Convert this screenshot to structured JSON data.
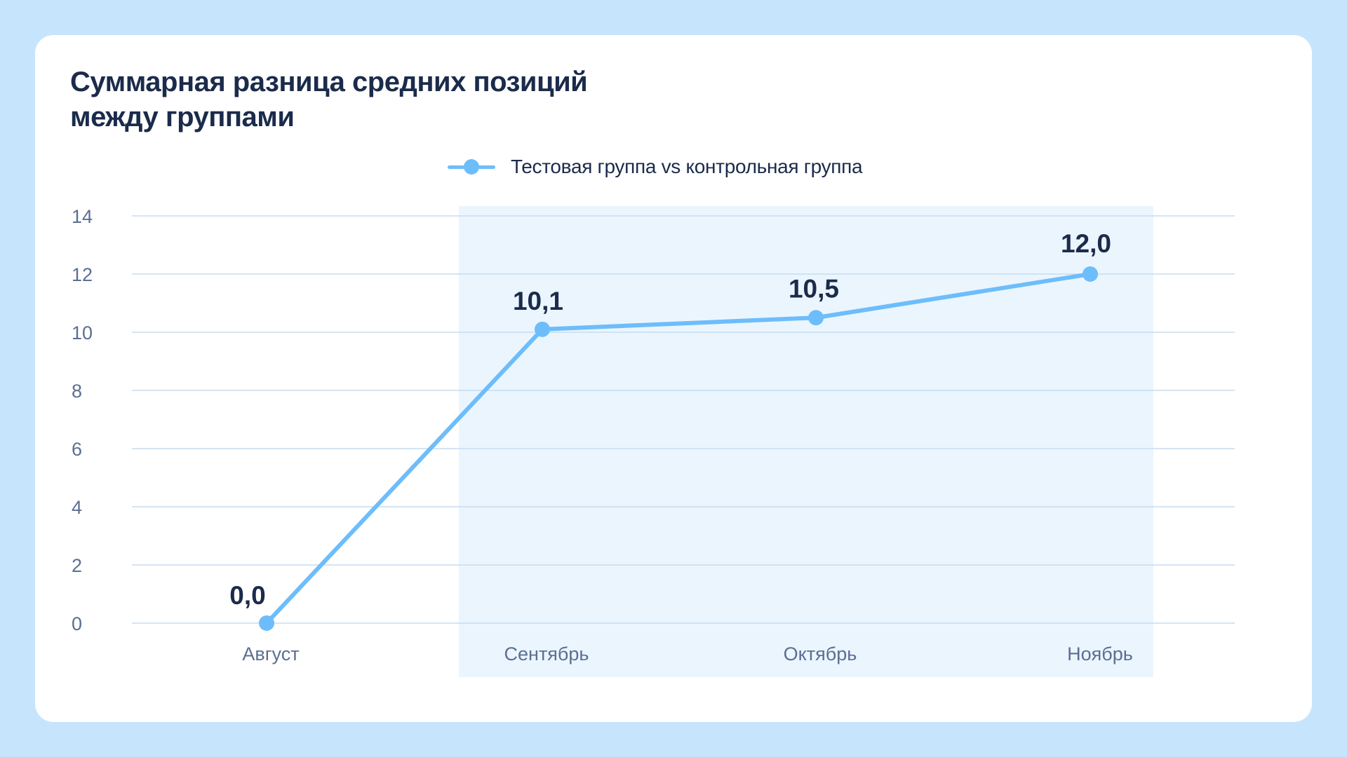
{
  "title": "Суммарная разница средних позиций между группами",
  "colors": {
    "background": "#c6e5fd",
    "card": "#ffffff",
    "line": "#6dbdfb",
    "highlight": "#ebf5fe",
    "grid": "#c8dcef",
    "text": "#1b2b4b",
    "axis_text": "#5b6f93"
  },
  "chart_data": {
    "type": "line",
    "title": "Суммарная разница средних позиций между группами",
    "categories": [
      "Август",
      "Сентябрь",
      "Октябрь",
      "Ноябрь"
    ],
    "series": [
      {
        "name": "Тестовая группа vs контрольная группа",
        "values": [
          0.0,
          10.1,
          10.5,
          12.0
        ],
        "data_labels": [
          "0,0",
          "10,1",
          "10,5",
          "12,0"
        ]
      }
    ],
    "ylim": [
      0,
      14
    ],
    "yticks": [
      0,
      2,
      4,
      6,
      8,
      10,
      12,
      14
    ],
    "xlabel": "",
    "ylabel": "",
    "grid": true,
    "legend_position": "top-center",
    "highlighted_categories": [
      "Сентябрь",
      "Октябрь",
      "Ноябрь"
    ]
  }
}
